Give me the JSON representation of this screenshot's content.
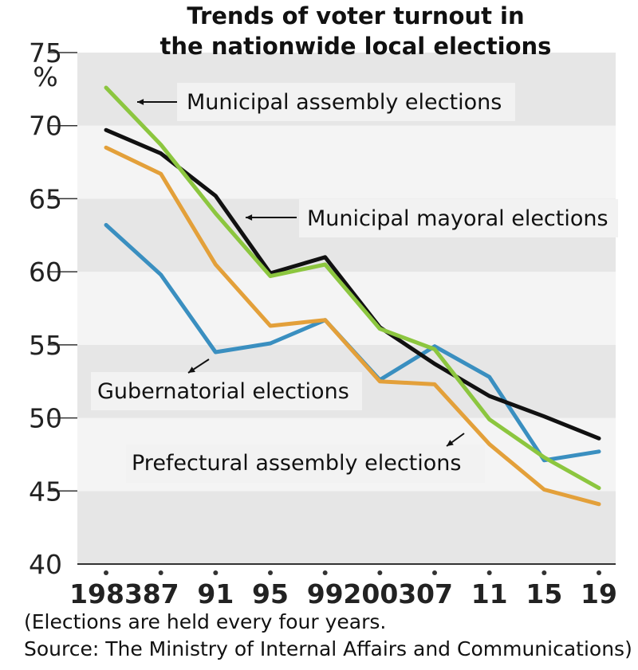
{
  "chart_data": {
    "type": "line",
    "title_lines": [
      "Trends of voter turnout in",
      "the nationwide local elections"
    ],
    "y_unit": "%",
    "ylim": [
      40,
      75
    ],
    "y_ticks": [
      "75",
      "70",
      "65",
      "60",
      "55",
      "50",
      "45",
      "40"
    ],
    "x_tick_labels": [
      "1983",
      "87",
      "91",
      "95",
      "99",
      "2003",
      "07",
      "11",
      "15",
      "19"
    ],
    "x": [
      1983,
      1987,
      1991,
      1995,
      1999,
      2003,
      2007,
      2011,
      2015,
      2019
    ],
    "grid": "alternating horizontal bands",
    "series": [
      {
        "key": "assembly",
        "color": "#8cc63f",
        "values": [
          72.6,
          68.7,
          64.0,
          59.7,
          60.5,
          56.1,
          54.7,
          49.9,
          47.3,
          45.2
        ]
      },
      {
        "key": "mayoral",
        "color": "#111111",
        "values": [
          69.7,
          68.1,
          65.2,
          59.9,
          61.0,
          56.2,
          53.7,
          51.5,
          50.1,
          48.6
        ]
      },
      {
        "key": "gubernatorial",
        "color": "#3a8fc0",
        "values": [
          63.2,
          59.8,
          54.5,
          55.1,
          56.7,
          52.6,
          54.9,
          52.8,
          47.1,
          47.7
        ]
      },
      {
        "key": "prefectural",
        "color": "#e3a03a",
        "values": [
          68.5,
          66.7,
          60.5,
          56.3,
          56.7,
          52.5,
          52.3,
          48.2,
          45.1,
          44.1
        ]
      }
    ],
    "annotations": [
      {
        "key": "assembly",
        "text": "Municipal assembly elections"
      },
      {
        "key": "mayoral",
        "text": "Municipal mayoral elections"
      },
      {
        "key": "gubernatorial",
        "text": "Gubernatorial elections"
      },
      {
        "key": "prefectural",
        "text": "Prefectural assembly elections"
      }
    ],
    "footnote_lines": [
      "(Elections are held every four years.",
      "Source: The Ministry of Internal Affairs and Communications)"
    ]
  }
}
